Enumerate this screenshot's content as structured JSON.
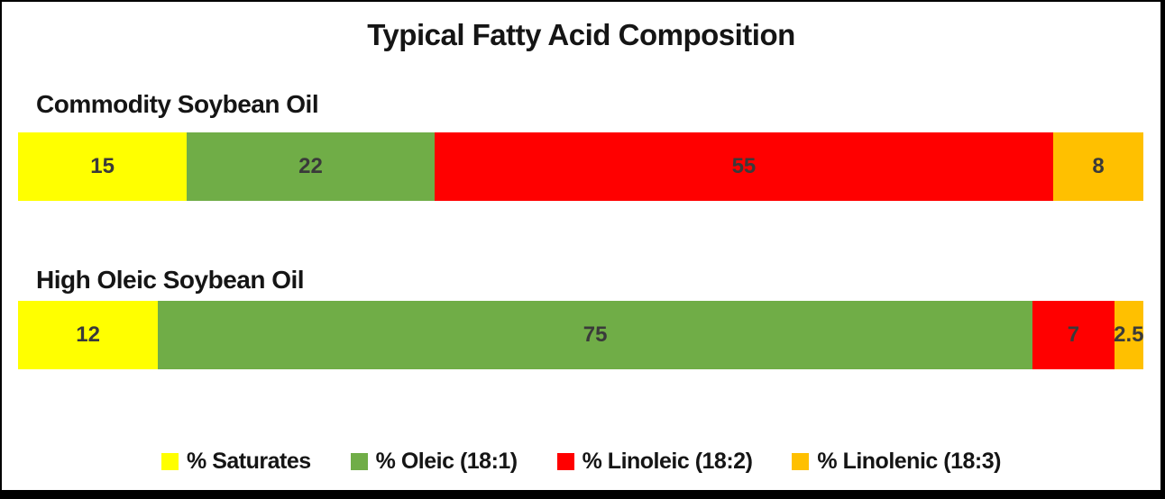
{
  "chart_data": {
    "type": "bar",
    "subtype": "stacked-horizontal-100pct",
    "title": "Typical Fatty Acid Composition",
    "categories": [
      "Commodity Soybean Oil",
      "High Oleic Soybean Oil"
    ],
    "series": [
      {
        "name": "% Saturates",
        "color": "#FFFF00",
        "values": [
          15,
          12
        ]
      },
      {
        "name": "% Oleic (18:1)",
        "color": "#70AD47",
        "values": [
          22,
          75
        ]
      },
      {
        "name": "% Linoleic (18:2)",
        "color": "#FF0000",
        "values": [
          55,
          7
        ]
      },
      {
        "name": "% Linolenic (18:3)",
        "color": "#FFC000",
        "values": [
          8,
          2.5
        ]
      }
    ],
    "value_label_color": "#3A3A3A",
    "frame_border_color": "#000000",
    "legend_position": "bottom",
    "grid": false,
    "axes_hidden": true
  }
}
